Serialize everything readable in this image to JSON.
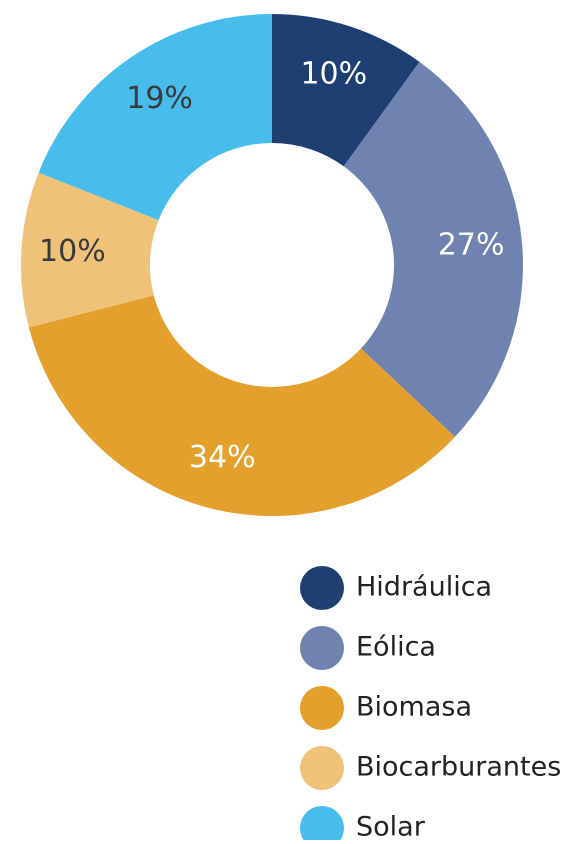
{
  "chart_data": {
    "type": "donut",
    "categories": [
      "Hidráulica",
      "Eólica",
      "Biomasa",
      "Biocarburantes",
      "Solar"
    ],
    "values": [
      10,
      27,
      34,
      10,
      19
    ],
    "value_labels": [
      "10%",
      "27%",
      "34%",
      "10%",
      "19%"
    ],
    "colors": [
      "#1f3f73",
      "#6f82b0",
      "#e3a02c",
      "#efc27a",
      "#48bdec"
    ],
    "label_colors": [
      "#ffffff",
      "#ffffff",
      "#ffffff",
      "#3a3a3a",
      "#3a3a3a"
    ]
  }
}
